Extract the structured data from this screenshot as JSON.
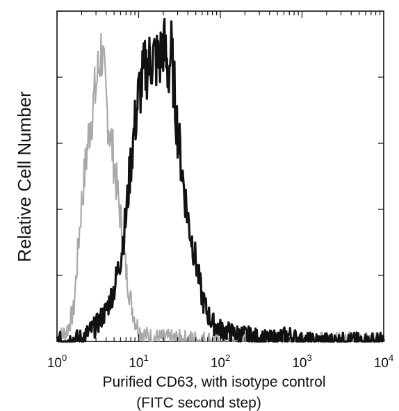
{
  "chart_data": {
    "type": "line",
    "title": "",
    "xlabel_line1": "Purified CD63, with isotype control",
    "xlabel_line2": "(FITC second step)",
    "ylabel": "Relative Cell Number",
    "x_scale": "log",
    "xlim": [
      1,
      10000
    ],
    "ylim": [
      0,
      1
    ],
    "x_ticks": [
      {
        "value": 1,
        "base": "10",
        "exp": "0"
      },
      {
        "value": 10,
        "base": "10",
        "exp": "1"
      },
      {
        "value": 100,
        "base": "10",
        "exp": "2"
      },
      {
        "value": 1000,
        "base": "10",
        "exp": "3"
      },
      {
        "value": 10000,
        "base": "10",
        "exp": "4"
      }
    ],
    "y_ticks_unlabeled": [
      0,
      0.2,
      0.4,
      0.6,
      0.8,
      1.0
    ],
    "grid": false,
    "legend": "none",
    "series": [
      {
        "role": "isotype-control",
        "color": "#9a9a9a",
        "x": [
          1.0,
          1.3,
          1.6,
          2.0,
          2.5,
          3.0,
          3.5,
          4.0,
          4.5,
          5.0,
          5.5,
          6.0,
          7.0,
          8.0,
          9.0,
          10,
          12,
          15,
          20,
          30,
          50,
          100,
          1000,
          10000
        ],
        "y": [
          0.01,
          0.03,
          0.1,
          0.45,
          0.69,
          0.82,
          0.95,
          0.77,
          0.67,
          0.58,
          0.48,
          0.4,
          0.23,
          0.13,
          0.07,
          0.04,
          0.02,
          0.012,
          0.01,
          0.008,
          0.006,
          0.004,
          0.002,
          0.0
        ]
      },
      {
        "role": "purified-cd63",
        "color": "#111111",
        "x": [
          1.0,
          2.0,
          3.0,
          4.0,
          5.0,
          6.0,
          7.0,
          8.0,
          9.0,
          10,
          12,
          15,
          18,
          20,
          23,
          25,
          30,
          35,
          40,
          50,
          60,
          70,
          80,
          100,
          150,
          200,
          300,
          400,
          700,
          1000,
          10000
        ],
        "y": [
          0.0,
          0.01,
          0.05,
          0.1,
          0.17,
          0.27,
          0.4,
          0.58,
          0.7,
          0.8,
          0.88,
          0.92,
          0.9,
          0.97,
          0.86,
          0.94,
          0.68,
          0.52,
          0.4,
          0.26,
          0.14,
          0.09,
          0.06,
          0.04,
          0.025,
          0.02,
          0.01,
          0.005,
          0.02,
          0.0,
          0.0
        ]
      }
    ]
  }
}
